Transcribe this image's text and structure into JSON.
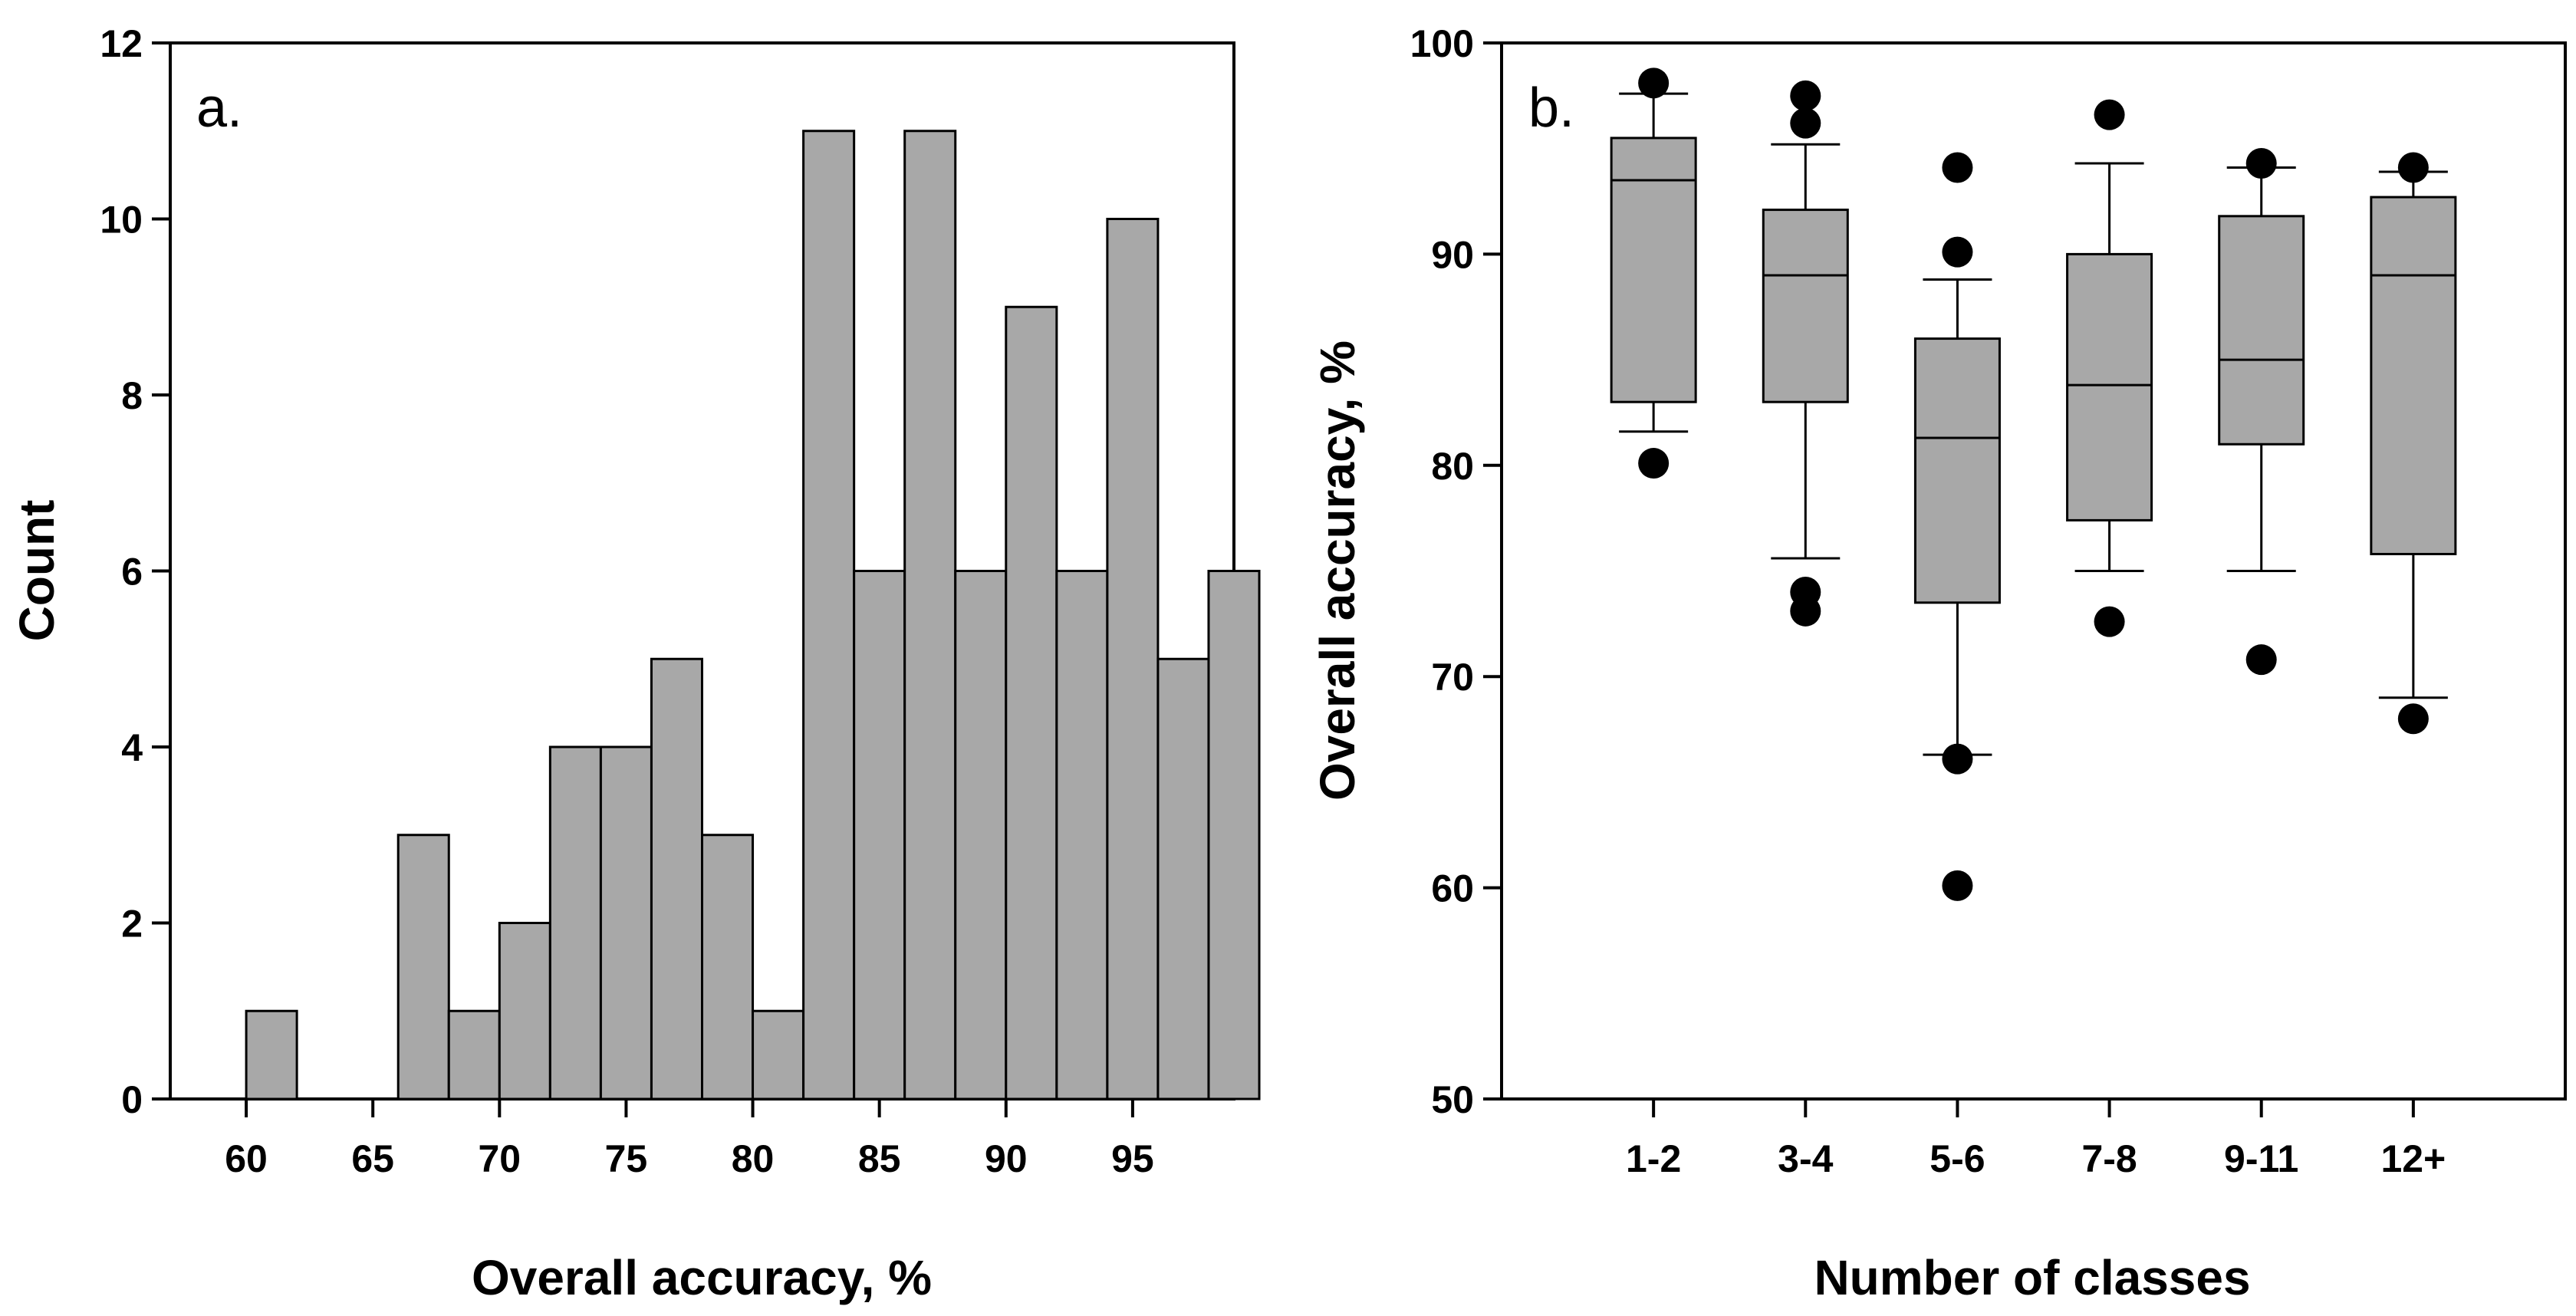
{
  "chart_data": [
    {
      "type": "bar",
      "panel_label": "a.",
      "xlabel": "Overall accuracy, %",
      "ylabel": "Count",
      "xlim": [
        57,
        99
      ],
      "ylim": [
        0,
        12
      ],
      "bin_width": 2,
      "bins": [
        {
          "start": 60,
          "end": 62,
          "count": 1
        },
        {
          "start": 66,
          "end": 68,
          "count": 3
        },
        {
          "start": 68,
          "end": 70,
          "count": 1
        },
        {
          "start": 70,
          "end": 72,
          "count": 2
        },
        {
          "start": 72,
          "end": 74,
          "count": 4
        },
        {
          "start": 74,
          "end": 76,
          "count": 4
        },
        {
          "start": 76,
          "end": 78,
          "count": 5
        },
        {
          "start": 78,
          "end": 80,
          "count": 3
        },
        {
          "start": 80,
          "end": 82,
          "count": 1
        },
        {
          "start": 82,
          "end": 84,
          "count": 11
        },
        {
          "start": 84,
          "end": 86,
          "count": 6
        },
        {
          "start": 86,
          "end": 88,
          "count": 11
        },
        {
          "start": 88,
          "end": 90,
          "count": 6
        },
        {
          "start": 90,
          "end": 92,
          "count": 9
        },
        {
          "start": 92,
          "end": 94,
          "count": 6
        },
        {
          "start": 94,
          "end": 96,
          "count": 10
        },
        {
          "start": 96,
          "end": 98,
          "count": 5
        },
        {
          "start": 98,
          "end": 100,
          "count": 6
        }
      ],
      "x_ticks": [
        60,
        65,
        70,
        75,
        80,
        85,
        90,
        95
      ],
      "y_ticks": [
        0,
        2,
        4,
        6,
        8,
        10,
        12
      ],
      "bar_color": "#a8a8a8"
    },
    {
      "type": "box",
      "panel_label": "b.",
      "xlabel": "Number of classes",
      "ylabel": "Overall accuracy, %",
      "ylim": [
        50,
        100
      ],
      "y_ticks": [
        50,
        60,
        70,
        80,
        90,
        100
      ],
      "categories": [
        "1-2",
        "3-4",
        "5-6",
        "7-8",
        "9-11",
        "12+"
      ],
      "boxes": [
        {
          "whisker_low": 81.6,
          "q1": 83.0,
          "median": 93.5,
          "q3": 95.5,
          "whisker_high": 97.6,
          "outliers": [
            98.1,
            80.1
          ]
        },
        {
          "whisker_low": 75.6,
          "q1": 83.0,
          "median": 89.0,
          "q3": 92.1,
          "whisker_high": 95.2,
          "outliers": [
            97.5,
            96.2,
            74.0,
            73.1
          ]
        },
        {
          "whisker_low": 66.3,
          "q1": 73.5,
          "median": 81.3,
          "q3": 86.0,
          "whisker_high": 88.8,
          "outliers": [
            94.1,
            90.1,
            66.1,
            60.1
          ]
        },
        {
          "whisker_low": 75.0,
          "q1": 77.4,
          "median": 83.8,
          "q3": 90.0,
          "whisker_high": 94.3,
          "outliers": [
            96.6,
            72.6
          ]
        },
        {
          "whisker_low": 75.0,
          "q1": 81.0,
          "median": 85.0,
          "q3": 91.8,
          "whisker_high": 94.1,
          "outliers": [
            94.3,
            70.8
          ]
        },
        {
          "whisker_low": 69.0,
          "q1": 75.8,
          "median": 89.0,
          "q3": 92.7,
          "whisker_high": 93.9,
          "outliers": [
            94.1,
            68.0
          ]
        }
      ],
      "box_color": "#a8a8a8"
    }
  ]
}
